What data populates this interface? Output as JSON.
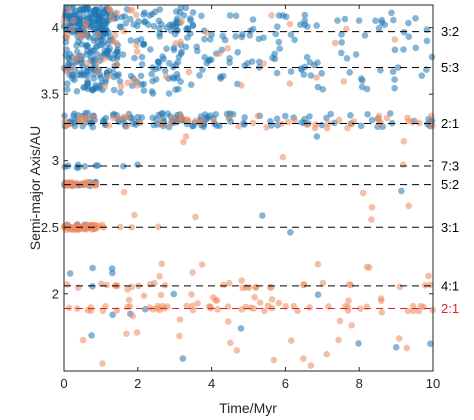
{
  "chart_data": {
    "type": "scatter",
    "xlabel": "Time/Myr",
    "ylabel": "Semi-major Axis/AU",
    "xlim": [
      0,
      10
    ],
    "ylim": [
      1.42,
      4.17
    ],
    "xticks": [
      0,
      2,
      4,
      6,
      8,
      10
    ],
    "yticks": [
      2,
      2.5,
      3,
      3.5,
      4
    ],
    "xtick_labels": [
      "0",
      "2",
      "4",
      "6",
      "8",
      "10"
    ],
    "ytick_labels": [
      "2",
      "2.5",
      "3",
      "3.5",
      "4"
    ],
    "grid": false,
    "resonances": [
      {
        "label": "3:2",
        "a": 3.97,
        "color": "#000000"
      },
      {
        "label": "5:3",
        "a": 3.7,
        "color": "#000000"
      },
      {
        "label": "2:1",
        "a": 3.28,
        "color": "#000000"
      },
      {
        "label": "7:3",
        "a": 2.96,
        "color": "#000000"
      },
      {
        "label": "5:2",
        "a": 2.82,
        "color": "#000000"
      },
      {
        "label": "3:1",
        "a": 2.5,
        "color": "#000000"
      },
      {
        "label": "4:1",
        "a": 2.06,
        "color": "#000000"
      },
      {
        "label": "2:1",
        "a": 1.89,
        "color": "#d62728"
      }
    ],
    "series": [
      {
        "color": "#1f77b4",
        "clusters": [
          {
            "t": [
              0,
              1.2
            ],
            "a": [
              3.95,
              4.15
            ],
            "n": 150
          },
          {
            "t": [
              1.2,
              3.5
            ],
            "a": [
              3.95,
              4.15
            ],
            "n": 60
          },
          {
            "t": [
              3.5,
              10
            ],
            "a": [
              3.9,
              4.12
            ],
            "n": 40
          },
          {
            "t": [
              0,
              1.5
            ],
            "a": [
              3.52,
              3.95
            ],
            "n": 140
          },
          {
            "t": [
              1.5,
              4
            ],
            "a": [
              3.5,
              3.95
            ],
            "n": 70
          },
          {
            "t": [
              4,
              10
            ],
            "a": [
              3.5,
              3.95
            ],
            "n": 60
          },
          {
            "t": [
              0,
              4
            ],
            "a": [
              3.25,
              3.36
            ],
            "n": 90
          },
          {
            "t": [
              4,
              10
            ],
            "a": [
              3.25,
              3.36
            ],
            "n": 45
          },
          {
            "t": [
              0,
              2
            ],
            "a": [
              2.94,
              2.97
            ],
            "n": 10
          },
          {
            "t": [
              0,
              1.0
            ],
            "a": [
              2.81,
              2.84
            ],
            "n": 14
          },
          {
            "t": [
              0,
              0.6
            ],
            "a": [
              2.49,
              2.52
            ],
            "n": 10
          },
          {
            "t": [
              0,
              3
            ],
            "a": [
              1.5,
              2.2
            ],
            "n": 8
          },
          {
            "t": [
              1,
              10
            ],
            "a": [
              1.45,
              3.2
            ],
            "n": 12
          }
        ]
      },
      {
        "color": "#ec8b5e",
        "clusters": [
          {
            "t": [
              0,
              0.9
            ],
            "a": [
              2.48,
              2.52
            ],
            "n": 55
          },
          {
            "t": [
              0.8,
              4
            ],
            "a": [
              2.48,
              2.52
            ],
            "n": 6
          },
          {
            "t": [
              0,
              0.9
            ],
            "a": [
              2.81,
              2.84
            ],
            "n": 30
          },
          {
            "t": [
              0,
              4
            ],
            "a": [
              3.24,
              3.34
            ],
            "n": 30
          },
          {
            "t": [
              4,
              10
            ],
            "a": [
              3.24,
              3.34
            ],
            "n": 30
          },
          {
            "t": [
              0,
              2
            ],
            "a": [
              3.55,
              4.15
            ],
            "n": 40
          },
          {
            "t": [
              2,
              10
            ],
            "a": [
              3.55,
              4.15
            ],
            "n": 18
          },
          {
            "t": [
              0,
              10
            ],
            "a": [
              1.87,
              1.91
            ],
            "n": 45
          },
          {
            "t": [
              0,
              10
            ],
            "a": [
              2.04,
              2.08
            ],
            "n": 25
          },
          {
            "t": [
              0,
              10
            ],
            "a": [
              1.45,
              2.25
            ],
            "n": 55
          },
          {
            "t": [
              0,
              10
            ],
            "a": [
              2.55,
              3.2
            ],
            "n": 12
          }
        ]
      }
    ]
  }
}
